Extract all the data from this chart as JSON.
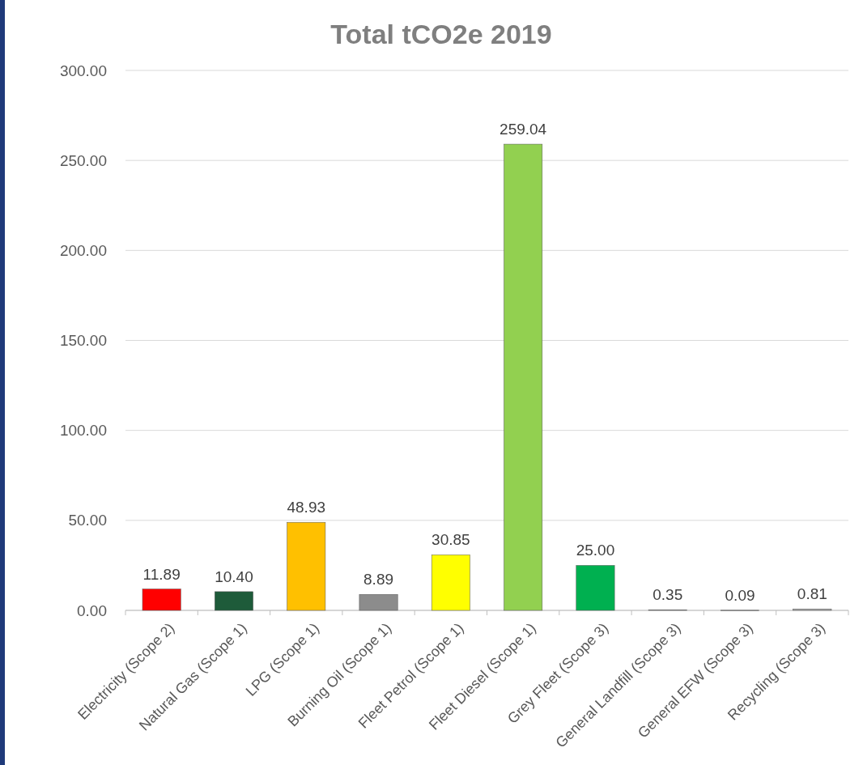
{
  "chart_data": {
    "type": "bar",
    "title": "Total tCO2e 2019",
    "categories": [
      "Electricity (Scope 2)",
      "Natural Gas (Scope 1)",
      "LPG (Scope 1)",
      "Burning Oil (Scope 1)",
      "Fleet Petrol (Scope 1)",
      "Fleet Diesel (Scope 1)",
      "Grey Fleet (Scope 3)",
      "General Landfill (Scope 3)",
      "General EFW (Scope 3)",
      "Recycling (Scope 3)"
    ],
    "values": [
      11.89,
      10.4,
      48.93,
      8.89,
      30.85,
      259.04,
      25.0,
      0.35,
      0.09,
      0.81
    ],
    "value_labels": [
      "11.89",
      "10.40",
      "48.93",
      "8.89",
      "30.85",
      "259.04",
      "25.00",
      "0.35",
      "0.09",
      "0.81"
    ],
    "colors": [
      "#ff0000",
      "#1e5b3a",
      "#ffc000",
      "#8c8c8c",
      "#ffff00",
      "#92d050",
      "#00b050",
      "#a6a6a6",
      "#a6a6a6",
      "#a6a6a6"
    ],
    "ylim": [
      0,
      300
    ],
    "yticks": [
      {
        "value": 0,
        "label": "0.00"
      },
      {
        "value": 50,
        "label": "50.00"
      },
      {
        "value": 100,
        "label": "100.00"
      },
      {
        "value": 150,
        "label": "150.00"
      },
      {
        "value": 200,
        "label": "200.00"
      },
      {
        "value": 250,
        "label": "250.00"
      },
      {
        "value": 300,
        "label": "300.00"
      }
    ],
    "grid": "y"
  }
}
